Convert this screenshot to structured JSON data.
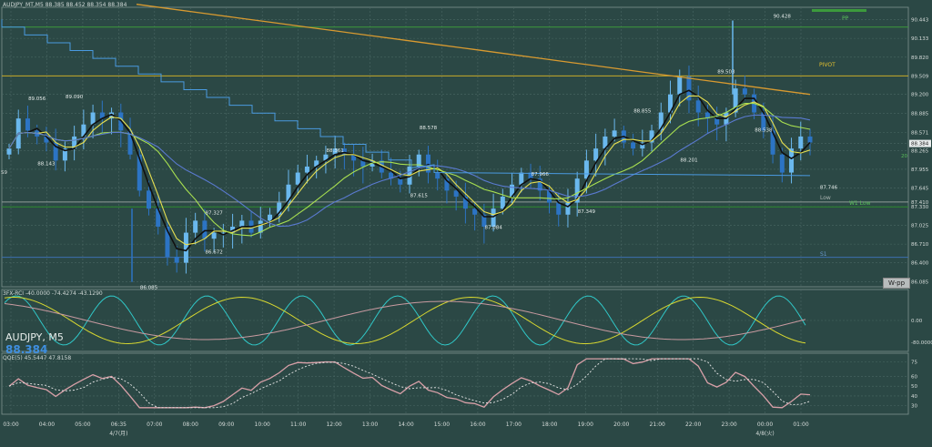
{
  "header": {
    "main_info": "AUDJPY_MT,M5  88.385 88.452 88.354 88.384",
    "rsi_info": "3FX-RCI -40.0000 -74.4274 -43.1290",
    "qqe_info": "QQE(5) 45.5447 47.8158",
    "symbol": "AUDJPY, M5",
    "bid": "88.384"
  },
  "labels": {
    "pp": "PP",
    "pivot": "PIVOT",
    "low": "Low",
    "w1low": "W1 Low",
    "s1": "S1",
    "wpp": "W-pp",
    "left_fragment": "S9",
    "right_fragment": "20"
  },
  "chart_data": [
    {
      "type": "candlestick",
      "title": "AUDJPY_MT,M5  88.385 88.452 88.354 88.384",
      "ylim": [
        86.0,
        90.65
      ],
      "yticks": [
        "90.443",
        "90.133",
        "89.820",
        "89.509",
        "89.200",
        "88.885",
        "88.571",
        "88.384",
        "88.265",
        "87.955",
        "87.645",
        "87.410",
        "87.330",
        "87.025",
        "86.710",
        "86.400",
        "86.085"
      ],
      "xticks": [
        "03:00",
        "04:00",
        "05:00",
        "06:35\n4/7(月)",
        "07:00",
        "08:00",
        "09:00",
        "10:00",
        "11:00",
        "12:00",
        "13:00",
        "14:00",
        "15:00",
        "16:00",
        "17:00",
        "18:00",
        "19:00",
        "20:00",
        "21:00",
        "22:00",
        "23:00",
        "00:00\n4/8(火)",
        "01:00"
      ],
      "annotations": [
        {
          "x": 3,
          "y": 89.056,
          "text": "89.056"
        },
        {
          "x": 7,
          "y": 89.09,
          "text": "89.090"
        },
        {
          "x": 4,
          "y": 88.143,
          "text": "88.143"
        },
        {
          "x": 22,
          "y": 87.327,
          "text": "87.327"
        },
        {
          "x": 22,
          "y": 86.672,
          "text": "86.672"
        },
        {
          "x": 15,
          "y": 86.085,
          "text": "86.085"
        },
        {
          "x": 35,
          "y": 88.361,
          "text": "88.361"
        },
        {
          "x": 45,
          "y": 88.578,
          "text": "88.578"
        },
        {
          "x": 44,
          "y": 87.615,
          "text": "87.615"
        },
        {
          "x": 52,
          "y": 87.084,
          "text": "87.084"
        },
        {
          "x": 57,
          "y": 87.966,
          "text": "87.966"
        },
        {
          "x": 62,
          "y": 87.349,
          "text": "87.349"
        },
        {
          "x": 68,
          "y": 88.855,
          "text": "88.855"
        },
        {
          "x": 73,
          "y": 88.201,
          "text": "88.201"
        },
        {
          "x": 77,
          "y": 89.503,
          "text": "89.503"
        },
        {
          "x": 81,
          "y": 88.538,
          "text": "88.538"
        },
        {
          "x": 83,
          "y": 90.428,
          "text": "90.428"
        },
        {
          "x": 88,
          "y": 87.746,
          "text": "87.746"
        }
      ],
      "levels": [
        {
          "name": "PP",
          "value": 90.32,
          "color": "#3c9a3c"
        },
        {
          "name": "PIVOT",
          "value": 89.509,
          "color": "#c8aa28"
        },
        {
          "name": "Low",
          "value": 87.41,
          "color": "#8f9a98"
        },
        {
          "name": "W1 Low",
          "value": 87.33,
          "color": "#2e8a2e"
        },
        {
          "name": "S1",
          "value": 86.49,
          "color": "#3d6fb0"
        }
      ],
      "series": [
        {
          "name": "candles",
          "close": [
            88.3,
            88.8,
            88.6,
            88.5,
            88.4,
            88.1,
            88.3,
            88.5,
            88.7,
            88.9,
            88.8,
            88.9,
            88.6,
            88.2,
            87.6,
            87.3,
            87.0,
            86.5,
            86.4,
            86.9,
            87.1,
            86.8,
            86.9,
            86.9,
            87.0,
            87.1,
            86.9,
            87.1,
            87.2,
            87.4,
            87.7,
            87.9,
            88.0,
            88.1,
            88.2,
            88.3,
            88.2,
            88.1,
            88.0,
            88.1,
            87.9,
            87.8,
            87.7,
            88.0,
            88.2,
            87.9,
            87.8,
            87.6,
            87.5,
            87.3,
            87.2,
            87.0,
            87.3,
            87.5,
            87.7,
            87.9,
            87.8,
            87.6,
            87.4,
            87.2,
            87.4,
            87.8,
            88.1,
            88.3,
            88.5,
            88.6,
            88.4,
            88.3,
            88.4,
            88.6,
            88.9,
            89.2,
            89.5,
            89.1,
            88.9,
            88.8,
            88.7,
            88.9,
            89.3,
            89.2,
            88.9,
            88.6,
            88.2,
            87.9,
            88.3,
            88.5,
            88.4
          ]
        },
        {
          "name": "MA black",
          "color": "#101010"
        },
        {
          "name": "MA yellow",
          "color": "#e8e050"
        },
        {
          "name": "MA light green",
          "color": "#a8e050"
        },
        {
          "name": "MA blue",
          "color": "#5a7ad0"
        },
        {
          "name": "MA orange",
          "color": "#d89a30"
        },
        {
          "name": "Step line",
          "color": "#4a9ae0"
        }
      ]
    },
    {
      "type": "line",
      "title": "3FX-RCI -40.0000 -74.4274 -43.1290",
      "ylim": [
        -100,
        100
      ],
      "yticks": [
        "0.00",
        "-80.0000"
      ],
      "series": [
        {
          "name": "cyan",
          "color": "#30c8c8"
        },
        {
          "name": "yellow",
          "color": "#d8d830"
        },
        {
          "name": "pink",
          "color": "#c89aa0"
        }
      ]
    },
    {
      "type": "line",
      "title": "QQE(5) 45.5447 47.8158",
      "ylim": [
        25,
        80
      ],
      "yticks": [
        "75",
        "60",
        "50",
        "40",
        "30"
      ],
      "series": [
        {
          "name": "QQE fast",
          "color": "#d8a0a8"
        },
        {
          "name": "QQE slow",
          "color": "#e8e8e8",
          "dashed": true
        }
      ]
    }
  ],
  "colors": {
    "background": "#2b4845",
    "grid": "#4a6764",
    "bull": "#6ab8ee",
    "bear": "#2c74c4"
  }
}
